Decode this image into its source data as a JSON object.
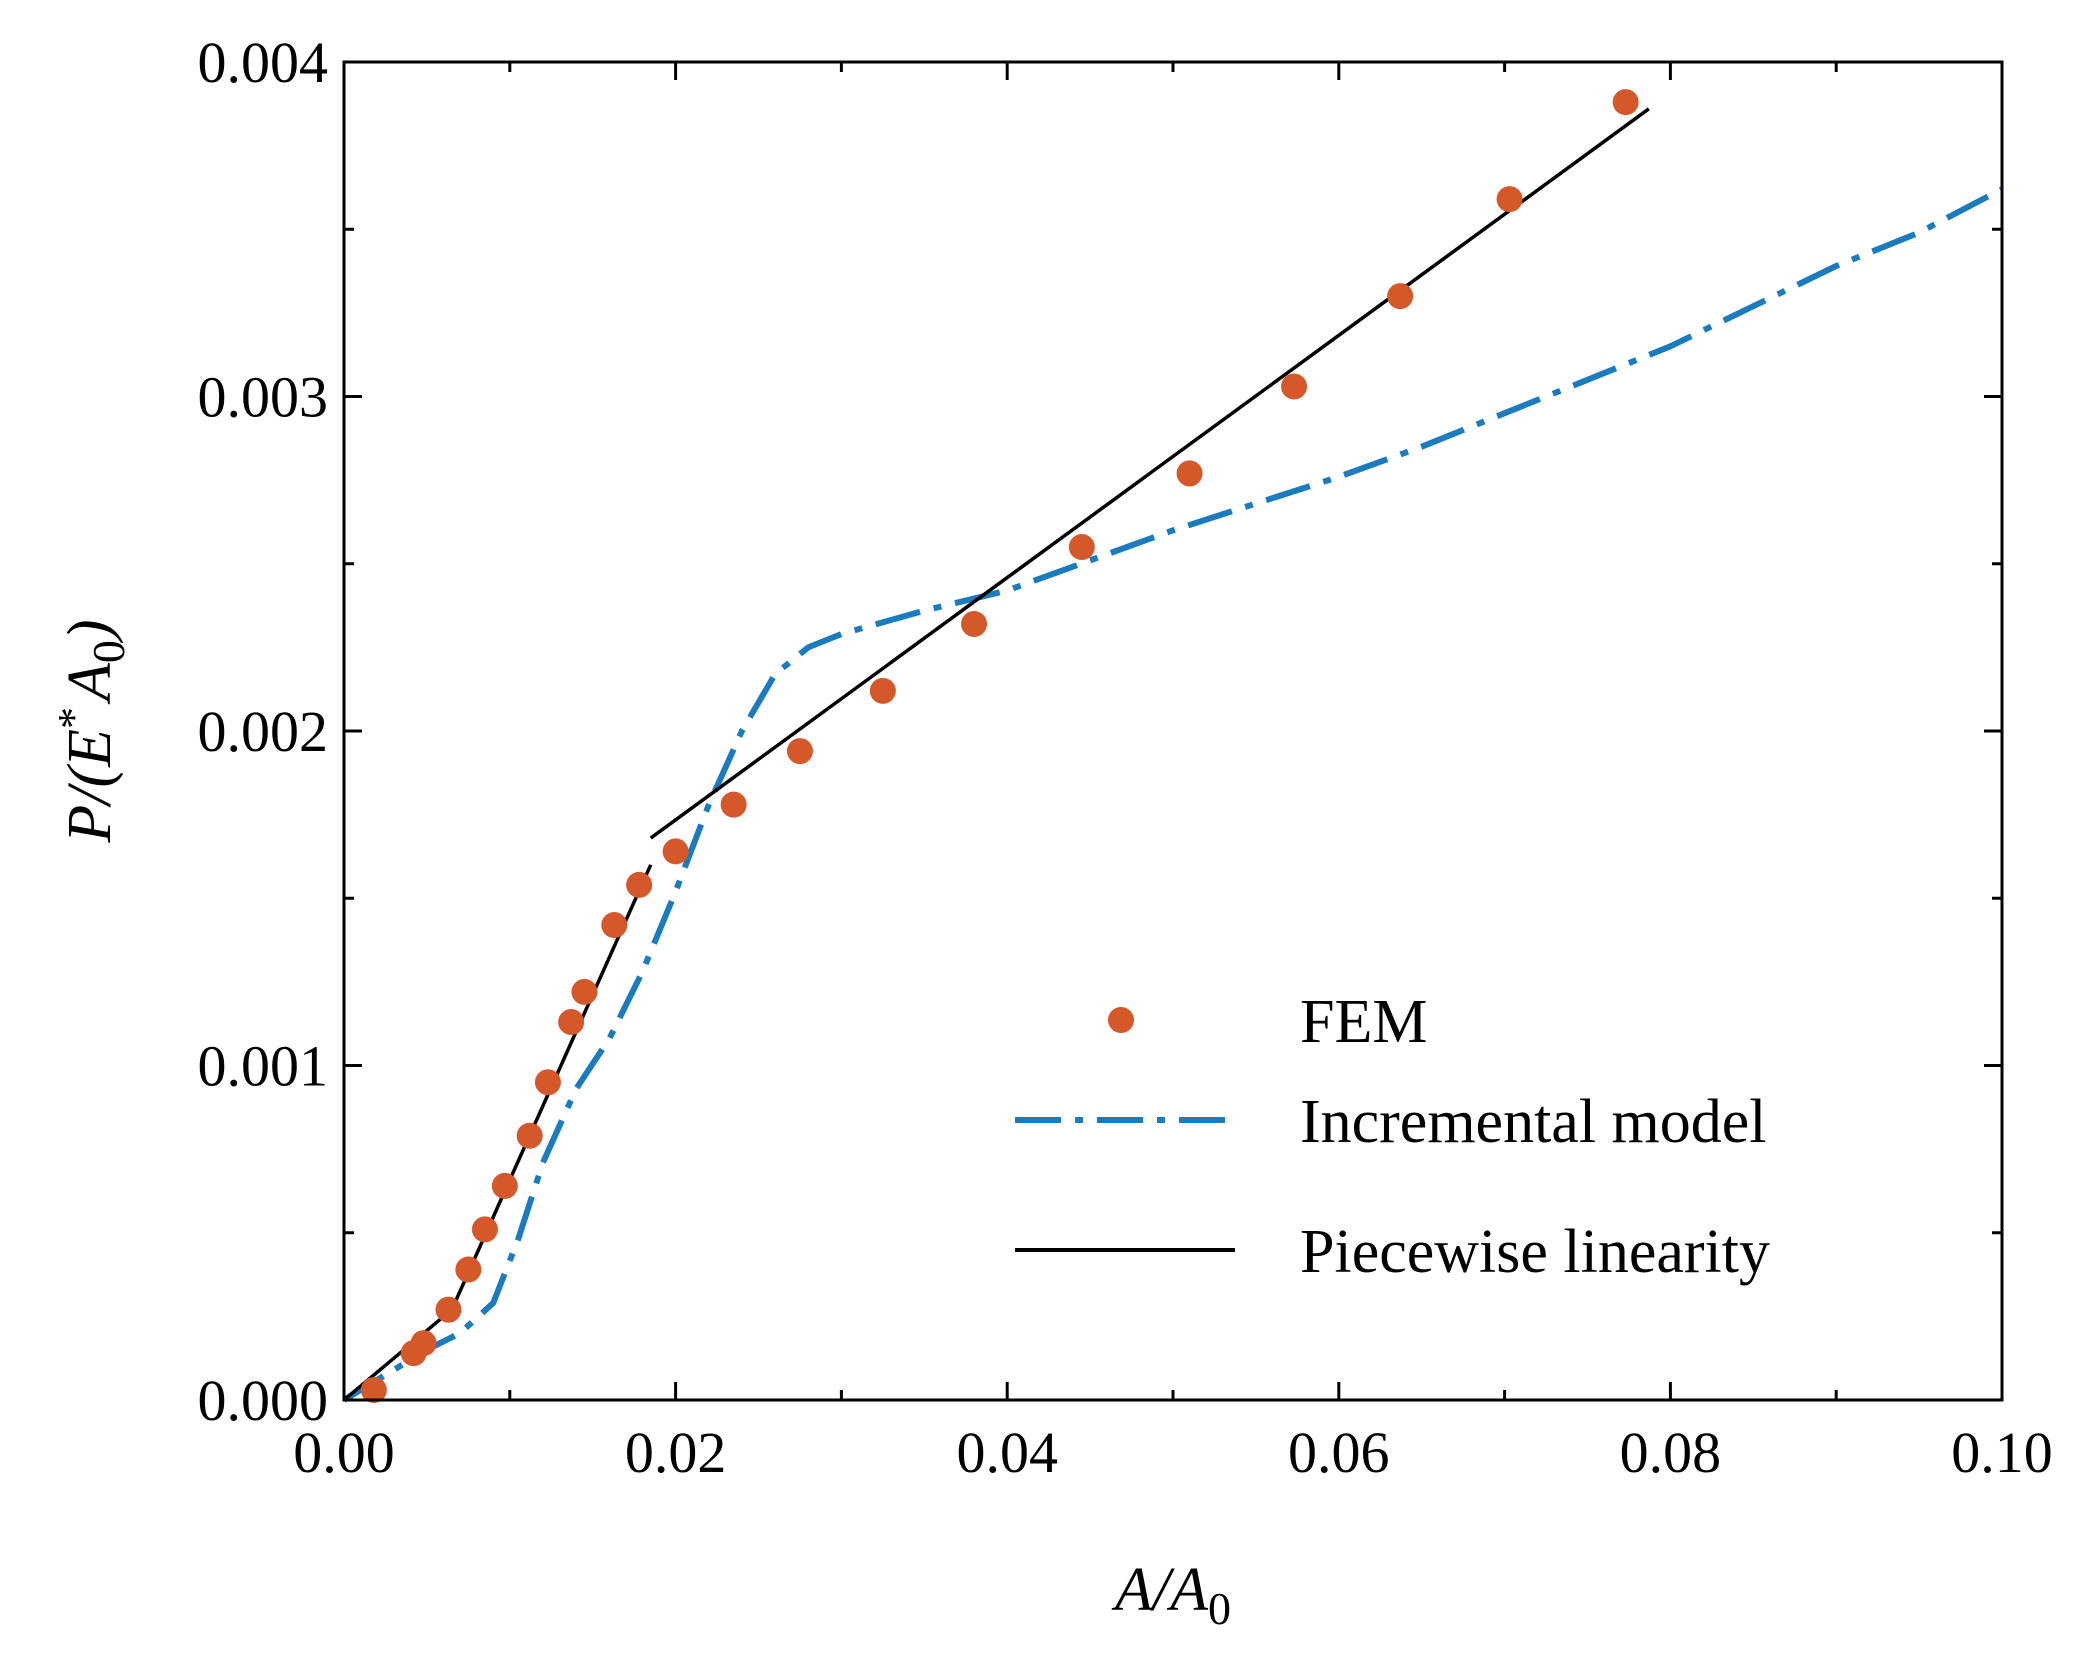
{
  "chart_data": {
    "type": "scatter",
    "title": "",
    "xlabel": {
      "main": "A/A",
      "sub": "0"
    },
    "ylabel": {
      "prefix": "P/(E",
      "sup": "*",
      "mid": "A",
      "sub": "0",
      "suffix": ")"
    },
    "xlim": [
      0,
      0.1
    ],
    "ylim": [
      0,
      0.004
    ],
    "x_ticks": [
      0.0,
      0.02,
      0.04,
      0.06,
      0.08,
      0.1
    ],
    "x_tick_labels": [
      "0.00",
      "0.02",
      "0.04",
      "0.06",
      "0.08",
      "0.10"
    ],
    "y_ticks": [
      0.0,
      0.001,
      0.002,
      0.003,
      0.004
    ],
    "y_tick_labels": [
      "0.000",
      "0.001",
      "0.002",
      "0.003",
      "0.004"
    ],
    "x_minor_ticks": [
      0.01,
      0.03,
      0.05,
      0.07,
      0.09
    ],
    "y_minor_ticks": [
      0.0005,
      0.0015,
      0.0025,
      0.0035
    ],
    "grid": false,
    "legend_position": "lower-right",
    "colors": {
      "fem": "#d4582a",
      "incremental": "#1a7bbf",
      "piecewise": "#000000"
    },
    "series": [
      {
        "name": "FEM",
        "style": "markers",
        "x": [
          0.0018,
          0.0042,
          0.0048,
          0.0063,
          0.0075,
          0.0085,
          0.0097,
          0.0112,
          0.0123,
          0.0137,
          0.0145,
          0.0163,
          0.0178,
          0.02,
          0.0235,
          0.0275,
          0.0325,
          0.038,
          0.0445,
          0.051,
          0.0573,
          0.0637,
          0.0703,
          0.0773
        ],
        "y": [
          3e-05,
          0.00014,
          0.00017,
          0.00027,
          0.00039,
          0.00051,
          0.00064,
          0.00079,
          0.00095,
          0.00113,
          0.00122,
          0.00142,
          0.00154,
          0.00164,
          0.00178,
          0.00194,
          0.00212,
          0.00232,
          0.00255,
          0.00277,
          0.00303,
          0.0033,
          0.00359,
          0.00388
        ]
      },
      {
        "name": "Incremental model",
        "style": "dash-dot",
        "x": [
          0.0,
          0.003,
          0.005,
          0.007,
          0.009,
          0.0105,
          0.012,
          0.014,
          0.016,
          0.018,
          0.02,
          0.022,
          0.024,
          0.026,
          0.028,
          0.03,
          0.035,
          0.04,
          0.045,
          0.05,
          0.055,
          0.06,
          0.065,
          0.07,
          0.075,
          0.08,
          0.085,
          0.09,
          0.095,
          0.1
        ],
        "y": [
          0.0,
          9e-05,
          0.00015,
          0.0002,
          0.00029,
          0.00048,
          0.00071,
          0.00093,
          0.00108,
          0.00128,
          0.00152,
          0.00178,
          0.002,
          0.00217,
          0.00225,
          0.00229,
          0.00236,
          0.00242,
          0.00251,
          0.0026,
          0.00268,
          0.00276,
          0.00285,
          0.00295,
          0.00305,
          0.00315,
          0.00327,
          0.00339,
          0.00349,
          0.00362
        ]
      },
      {
        "name": "Piecewise linearity",
        "style": "solid",
        "x": [
          0.0,
          0.0065,
          0.0185,
          0.0185,
          0.0787
        ],
        "y": [
          0.0,
          0.00027,
          0.0016,
          0.00168,
          0.00386
        ],
        "segments": [
          [
            0,
            1
          ],
          [
            1,
            2
          ],
          [
            3,
            4
          ]
        ]
      }
    ]
  }
}
